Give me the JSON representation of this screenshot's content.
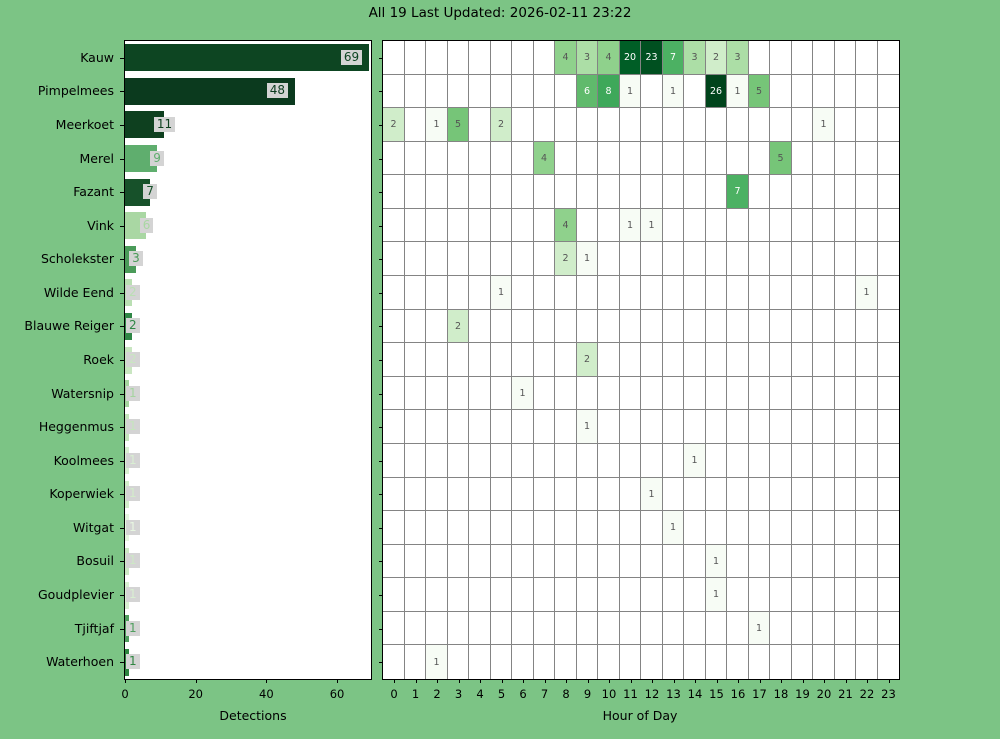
{
  "title": "All 19 Last Updated: 2026-02-11 23:22",
  "colors": {
    "background": "#7cc485",
    "plot_background": "#ffffff",
    "spine": "#000000",
    "grid": "#848484",
    "label_box_background": "#d4d4d4",
    "tick_label": "#000000",
    "current_hour_label": "#e8ef2a",
    "cell_text_dark": "#555555",
    "cell_text_light": "#ffffff"
  },
  "bar_chart": {
    "xlabel": "Detections",
    "x_ticks": [
      0,
      20,
      40,
      60
    ],
    "x_max": 69.6
  },
  "heatmap": {
    "xlabel": "Hour of Day",
    "hours": [
      0,
      1,
      2,
      3,
      4,
      5,
      6,
      7,
      8,
      9,
      10,
      11,
      12,
      13,
      14,
      15,
      16,
      17,
      18,
      19,
      20,
      21,
      22,
      23
    ],
    "current_hour": 23,
    "vmax": 26
  },
  "chart_data": [
    {
      "type": "bar",
      "orientation": "horizontal",
      "title": "All 19 Last Updated: 2026-02-11 23:22",
      "xlabel": "Detections",
      "ylabel": "",
      "xlim": [
        0,
        69.6
      ],
      "x_ticks": [
        0,
        20,
        40,
        60
      ],
      "categories": [
        "Kauw",
        "Pimpelmees",
        "Meerkoet",
        "Merel",
        "Fazant",
        "Vink",
        "Scholekster",
        "Wilde Eend",
        "Blauwe Reiger",
        "Roek",
        "Watersnip",
        "Heggenmus",
        "Koolmees",
        "Koperwiek",
        "Witgat",
        "Bosuil",
        "Goudplevier",
        "Tjiftjaf",
        "Waterhoen"
      ],
      "values": [
        69,
        48,
        11,
        9,
        7,
        6,
        3,
        2,
        2,
        2,
        1,
        1,
        1,
        1,
        1,
        1,
        1,
        1,
        1
      ],
      "bar_colors": [
        "#0d4522",
        "#0b3a1e",
        "#0e401f",
        "#5fae6e",
        "#17512a",
        "#a9d7a3",
        "#4a9b59",
        "#badfb3",
        "#2f8746",
        "#c9e6c1",
        "#a5d49f",
        "#c6e5be",
        "#d9efd2",
        "#d3ecca",
        "#e7f6e1",
        "#cde8c5",
        "#d9efd2",
        "#4f9e5e",
        "#2e8540"
      ]
    },
    {
      "type": "heatmap",
      "xlabel": "Hour of Day",
      "ylabel": "",
      "x_categories": [
        0,
        1,
        2,
        3,
        4,
        5,
        6,
        7,
        8,
        9,
        10,
        11,
        12,
        13,
        14,
        15,
        16,
        17,
        18,
        19,
        20,
        21,
        22,
        23
      ],
      "y_categories": [
        "Kauw",
        "Pimpelmees",
        "Meerkoet",
        "Merel",
        "Fazant",
        "Vink",
        "Scholekster",
        "Wilde Eend",
        "Blauwe Reiger",
        "Roek",
        "Watersnip",
        "Heggenmus",
        "Koolmees",
        "Koperwiek",
        "Witgat",
        "Bosuil",
        "Goudplevier",
        "Tjiftjaf",
        "Waterhoen"
      ],
      "vmin": 0,
      "vmax": 26,
      "colormap": "Greens (log scale)",
      "cells": [
        {
          "species": "Kauw",
          "hour": 8,
          "value": 4
        },
        {
          "species": "Kauw",
          "hour": 9,
          "value": 3
        },
        {
          "species": "Kauw",
          "hour": 10,
          "value": 4
        },
        {
          "species": "Kauw",
          "hour": 11,
          "value": 20
        },
        {
          "species": "Kauw",
          "hour": 12,
          "value": 23
        },
        {
          "species": "Kauw",
          "hour": 13,
          "value": 7
        },
        {
          "species": "Kauw",
          "hour": 14,
          "value": 3
        },
        {
          "species": "Kauw",
          "hour": 15,
          "value": 2
        },
        {
          "species": "Kauw",
          "hour": 16,
          "value": 3
        },
        {
          "species": "Pimpelmees",
          "hour": 9,
          "value": 6
        },
        {
          "species": "Pimpelmees",
          "hour": 10,
          "value": 8
        },
        {
          "species": "Pimpelmees",
          "hour": 11,
          "value": 1
        },
        {
          "species": "Pimpelmees",
          "hour": 13,
          "value": 1
        },
        {
          "species": "Pimpelmees",
          "hour": 15,
          "value": 26
        },
        {
          "species": "Pimpelmees",
          "hour": 16,
          "value": 1
        },
        {
          "species": "Pimpelmees",
          "hour": 17,
          "value": 5
        },
        {
          "species": "Meerkoet",
          "hour": 0,
          "value": 2
        },
        {
          "species": "Meerkoet",
          "hour": 2,
          "value": 1
        },
        {
          "species": "Meerkoet",
          "hour": 3,
          "value": 5
        },
        {
          "species": "Meerkoet",
          "hour": 5,
          "value": 2
        },
        {
          "species": "Meerkoet",
          "hour": 20,
          "value": 1
        },
        {
          "species": "Merel",
          "hour": 7,
          "value": 4
        },
        {
          "species": "Merel",
          "hour": 18,
          "value": 5
        },
        {
          "species": "Fazant",
          "hour": 16,
          "value": 7
        },
        {
          "species": "Vink",
          "hour": 8,
          "value": 4
        },
        {
          "species": "Vink",
          "hour": 11,
          "value": 1
        },
        {
          "species": "Vink",
          "hour": 12,
          "value": 1
        },
        {
          "species": "Scholekster",
          "hour": 8,
          "value": 2
        },
        {
          "species": "Scholekster",
          "hour": 9,
          "value": 1
        },
        {
          "species": "Wilde Eend",
          "hour": 5,
          "value": 1
        },
        {
          "species": "Wilde Eend",
          "hour": 22,
          "value": 1
        },
        {
          "species": "Blauwe Reiger",
          "hour": 3,
          "value": 2
        },
        {
          "species": "Roek",
          "hour": 9,
          "value": 2
        },
        {
          "species": "Watersnip",
          "hour": 6,
          "value": 1
        },
        {
          "species": "Heggenmus",
          "hour": 9,
          "value": 1
        },
        {
          "species": "Koolmees",
          "hour": 14,
          "value": 1
        },
        {
          "species": "Koperwiek",
          "hour": 12,
          "value": 1
        },
        {
          "species": "Witgat",
          "hour": 13,
          "value": 1
        },
        {
          "species": "Bosuil",
          "hour": 15,
          "value": 1
        },
        {
          "species": "Goudplevier",
          "hour": 15,
          "value": 1
        },
        {
          "species": "Tjiftjaf",
          "hour": 17,
          "value": 1
        },
        {
          "species": "Waterhoen",
          "hour": 2,
          "value": 1
        }
      ]
    }
  ]
}
